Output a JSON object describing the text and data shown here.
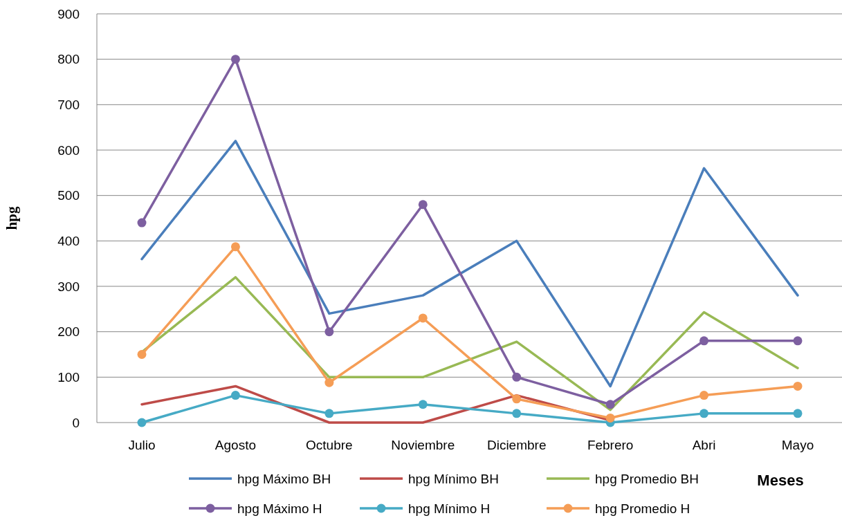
{
  "chart_data": {
    "type": "line",
    "xlabel": "Meses",
    "ylabel": "hpg",
    "categories": [
      "Julio",
      "Agosto",
      "Octubre",
      "Noviembre",
      "Diciembre",
      "Febrero",
      "Abri",
      "Mayo"
    ],
    "series": [
      {
        "name": "hpg Máximo BH",
        "color": "#4a7ebb",
        "marker": "none",
        "values": [
          360,
          620,
          240,
          280,
          400,
          80,
          560,
          280
        ]
      },
      {
        "name": "hpg Mínimo BH",
        "color": "#be4b48",
        "marker": "none",
        "values": [
          40,
          80,
          0,
          0,
          60,
          5,
          null,
          null
        ]
      },
      {
        "name": "hpg Promedio BH",
        "color": "#98b954",
        "marker": "none",
        "values": [
          155,
          320,
          100,
          100,
          178,
          28,
          243,
          120
        ]
      },
      {
        "name": "hpg Máximo H",
        "color": "#7d5fa0",
        "marker": "circle",
        "values": [
          440,
          800,
          200,
          480,
          100,
          40,
          180,
          180
        ]
      },
      {
        "name": "hpg Mínimo H",
        "color": "#46aac5",
        "marker": "circle",
        "values": [
          0,
          60,
          20,
          40,
          20,
          0,
          20,
          20
        ]
      },
      {
        "name": "hpg Promedio H",
        "color": "#f59d56",
        "marker": "circle",
        "values": [
          150,
          387,
          88,
          230,
          52,
          10,
          60,
          80
        ]
      }
    ],
    "ylim": [
      0,
      900
    ],
    "yticks": [
      0,
      100,
      200,
      300,
      400,
      500,
      600,
      700,
      800,
      900
    ],
    "grid": "y",
    "legend": "bottom"
  }
}
